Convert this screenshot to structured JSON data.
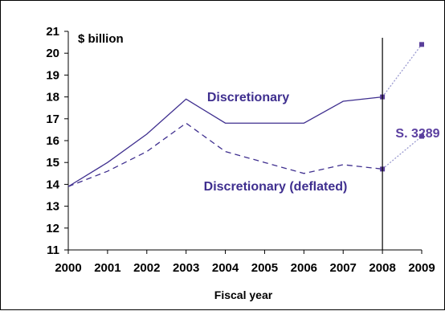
{
  "chart_data": {
    "type": "line",
    "title": "",
    "unit_label": "$ billion",
    "xlabel": "Fiscal year",
    "ylabel": "",
    "x": [
      "2000",
      "2001",
      "2002",
      "2003",
      "2004",
      "2005",
      "2006",
      "2007",
      "2008",
      "2009"
    ],
    "ylim": [
      11,
      21
    ],
    "yticks": [
      "11",
      "12",
      "13",
      "14",
      "15",
      "16",
      "17",
      "18",
      "19",
      "20",
      "21"
    ],
    "grid": false,
    "legend": "none",
    "series": [
      {
        "name": "Discretionary",
        "values": [
          13.9,
          15.0,
          16.3,
          17.9,
          16.8,
          16.8,
          16.8,
          17.8,
          18.0,
          20.4
        ],
        "line_style": "solid",
        "projection_from": "2008"
      },
      {
        "name": "Discretionary (deflated)",
        "values": [
          13.9,
          14.6,
          15.5,
          16.8,
          15.5,
          15.0,
          14.5,
          14.9,
          14.7,
          16.2
        ],
        "line_style": "dashed",
        "projection_from": "2008"
      }
    ],
    "annotations": [
      {
        "text": "S. 3289",
        "at": "2008",
        "type": "vertical-line"
      }
    ],
    "colors": {
      "series": "#3f2f8f",
      "projection": "#9a9ad0",
      "marker": "#5a3f9a",
      "annotation": "#5b3fa0",
      "axis": "#000000"
    }
  }
}
